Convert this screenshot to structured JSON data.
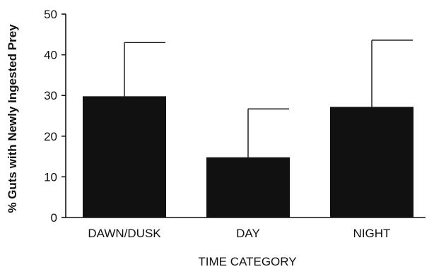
{
  "chart_data": {
    "type": "bar",
    "categories": [
      "DAWN/DUSK",
      "DAY",
      "NIGHT"
    ],
    "values": [
      29.8,
      14.8,
      27.2
    ],
    "error_upper": [
      43.0,
      26.7,
      43.6
    ],
    "xlabel": "TIME CATEGORY",
    "ylabel": "% Guts with Newly Ingested Prey",
    "ylim": [
      0,
      50
    ],
    "yticks": [
      0,
      10,
      20,
      30,
      40,
      50
    ],
    "ytick_labels": [
      "0",
      "10",
      "20",
      "30",
      "40",
      "50"
    ],
    "grid": false,
    "legend": "none",
    "bar_color": "#111111"
  }
}
